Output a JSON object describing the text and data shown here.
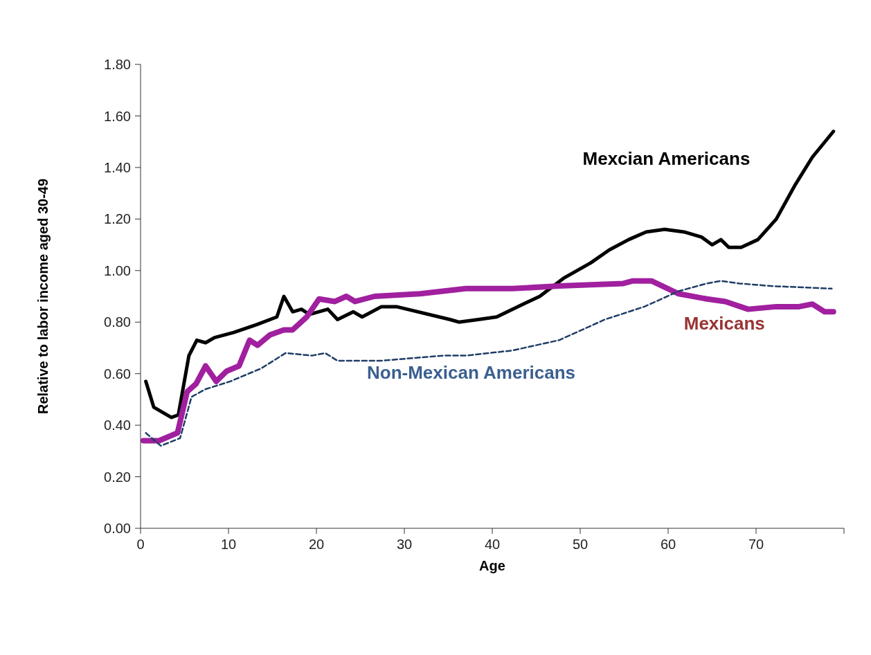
{
  "chart_data": {
    "type": "line",
    "xlabel": "Age",
    "ylabel": "Relative to labor income  aged 30-49",
    "xlim": [
      0,
      80
    ],
    "ylim": [
      0,
      1.8
    ],
    "xticks": [
      0,
      10,
      20,
      30,
      40,
      50,
      60,
      70,
      {
        "value": 80,
        "label": null
      }
    ],
    "yticks": [
      {
        "value": 0,
        "label": "0.00"
      },
      {
        "value": 0.2,
        "label": "0.20"
      },
      {
        "value": 0.4,
        "label": "0.40"
      },
      {
        "value": 0.6,
        "label": "0.60"
      },
      {
        "value": 0.8,
        "label": "0.80"
      },
      {
        "value": 1,
        "label": "1.00"
      },
      {
        "value": 1.2,
        "label": "1.20"
      },
      {
        "value": 1.4,
        "label": "1.40"
      },
      {
        "value": 1.6,
        "label": "1.60"
      },
      {
        "value": 1.8,
        "label": "1.80"
      }
    ],
    "marker": "none",
    "series": [
      {
        "name": "Mexcian Americans",
        "color": "#000000",
        "line_style": "solid",
        "x": [
          0.6,
          1.5,
          3.5,
          4.3,
          5.5,
          6.4,
          7.4,
          8.4,
          10.6,
          13.2,
          15.5,
          16.3,
          17.3,
          18.3,
          19.2,
          21.3,
          22.4,
          24.2,
          25.2,
          27.4,
          29.1,
          35.2,
          36.2,
          38.4,
          40.5,
          42.9,
          45.4,
          48.1,
          51.2,
          53.3,
          55.5,
          57.5,
          59.6,
          61.8,
          63.8,
          65,
          66,
          66.9,
          68.3,
          70.2,
          72.3,
          74.4,
          76.4,
          78.8
        ],
        "values": [
          0.57,
          0.47,
          0.43,
          0.44,
          0.67,
          0.73,
          0.72,
          0.74,
          0.76,
          0.79,
          0.82,
          0.9,
          0.84,
          0.85,
          0.83,
          0.85,
          0.81,
          0.84,
          0.82,
          0.86,
          0.86,
          0.81,
          0.8,
          0.81,
          0.82,
          0.86,
          0.9,
          0.97,
          1.03,
          1.08,
          1.12,
          1.15,
          1.16,
          1.15,
          1.13,
          1.1,
          1.12,
          1.09,
          1.09,
          1.12,
          1.2,
          1.33,
          1.44,
          1.54
        ]
      },
      {
        "name": "Mexicans",
        "color": "#a0209f",
        "line_style": "solid",
        "x": [
          0.3,
          2.1,
          4.2,
          5.3,
          6.3,
          7.4,
          8.6,
          9.8,
          11.2,
          12.4,
          13.3,
          14.7,
          16.3,
          17.3,
          18.9,
          20.3,
          22.1,
          23.4,
          24.4,
          26.6,
          31.8,
          37,
          42.3,
          47.6,
          54.9,
          56,
          58.1,
          61.2,
          64.4,
          66.5,
          69.1,
          72.3,
          74.9,
          76.4,
          77.8,
          78.8
        ],
        "values": [
          0.34,
          0.34,
          0.37,
          0.53,
          0.56,
          0.63,
          0.57,
          0.61,
          0.63,
          0.73,
          0.71,
          0.75,
          0.77,
          0.77,
          0.82,
          0.89,
          0.88,
          0.9,
          0.88,
          0.9,
          0.91,
          0.93,
          0.93,
          0.94,
          0.95,
          0.96,
          0.96,
          0.91,
          0.89,
          0.88,
          0.85,
          0.86,
          0.86,
          0.87,
          0.84,
          0.84
        ]
      },
      {
        "name": "Non-Mexican Americans",
        "color": "#1f3d66",
        "line_style": "dashed",
        "x": [
          0.6,
          2.3,
          4.5,
          5.8,
          7.4,
          10.2,
          13.7,
          16.5,
          19.5,
          21,
          22.4,
          27.3,
          34.4,
          37,
          42.3,
          47.6,
          52.8,
          57.3,
          61.2,
          64.4,
          66,
          68.1,
          71.7,
          78.6
        ],
        "values": [
          0.37,
          0.32,
          0.35,
          0.51,
          0.54,
          0.57,
          0.62,
          0.68,
          0.67,
          0.68,
          0.65,
          0.65,
          0.67,
          0.67,
          0.69,
          0.73,
          0.81,
          0.86,
          0.92,
          0.95,
          0.96,
          0.95,
          0.94,
          0.93
        ]
      }
    ]
  }
}
